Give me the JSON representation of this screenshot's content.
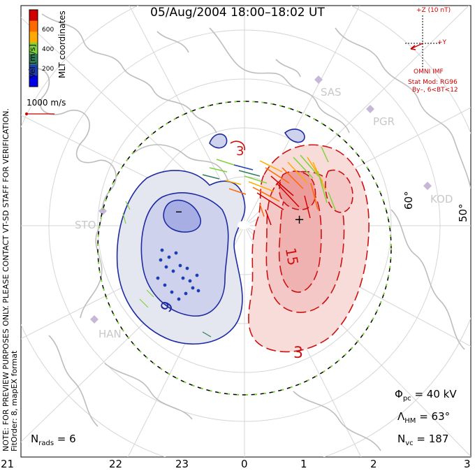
{
  "title": "05/Aug/2004 18:00–18:02 UT",
  "colorbar": {
    "label": "Vel [m/s]",
    "ticks": [
      "600",
      "400",
      "200"
    ],
    "colors": [
      "#d40000",
      "#ff6a00",
      "#ffaa00",
      "#7fd23a",
      "#2e7d5a",
      "#1e3fb0",
      "#0000e6"
    ]
  },
  "coords_label": "MLT coordinates",
  "velocity_scale": {
    "label": "1000 m/s"
  },
  "imf": {
    "z_label": "+Z (10 nT)",
    "y_label": "+Y",
    "source": "OMNI IMF",
    "model": "Stat Mod: RG96",
    "condition": "By–, 6<BT<12"
  },
  "notice": {
    "line1": "NOTE: FOR PREVIEW PURPOSES ONLY. PLEASE CONTACT VT-SD STAFF FOR VERIFICATION.",
    "line2": "FitOrder: 8, mapEX format"
  },
  "stations": [
    "SAS",
    "PGR",
    "KOD",
    "STO",
    "HAN"
  ],
  "contours": {
    "min_marker": "–",
    "max_marker": "+",
    "neg_label": "9",
    "pos_label": "15",
    "pos_label_small": "3",
    "pos_label_bottom": "3"
  },
  "lat_labels": [
    "60°",
    "50°"
  ],
  "stats": {
    "phi_sym": "Φ",
    "phi_sub": "pc",
    "phi_val": " = 40 kV",
    "lambda_sym": "Λ",
    "lambda_sub": "HM",
    "lambda_val": " = 63°",
    "nvc_sym": "N",
    "nvc_sub": "vc",
    "nvc_val": " = 187",
    "nrads_sym": "N",
    "nrads_sub": "rads",
    "nrads_val": " = 6"
  },
  "mlt_labels": [
    "21",
    "22",
    "23",
    "0",
    "1",
    "2",
    "3"
  ]
}
